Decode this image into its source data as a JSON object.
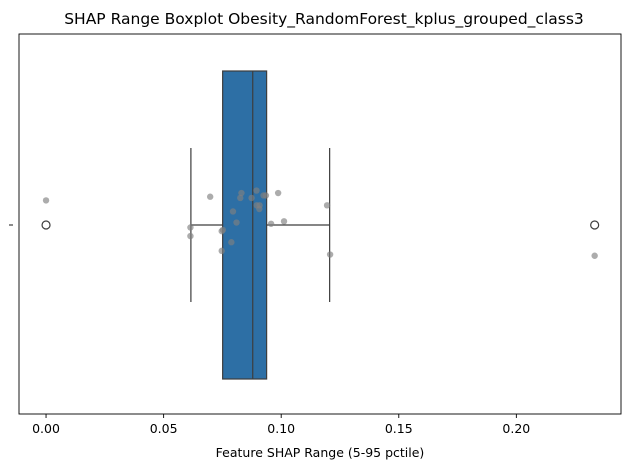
{
  "chart_data": {
    "type": "boxplot",
    "title": "SHAP Range Boxplot Obesity_RandomForest_kplus_grouped_class3",
    "xlabel": "Feature SHAP Range (5-95 pctile)",
    "ylabel": "",
    "xlim": [
      -0.0115,
      0.2445
    ],
    "xticks": [
      0.0,
      0.05,
      0.1,
      0.15,
      0.2
    ],
    "xtick_labels": [
      "0.00",
      "0.05",
      "0.10",
      "0.15",
      "0.20"
    ],
    "grid": false,
    "box": {
      "q1": 0.0751,
      "median": 0.0879,
      "q3": 0.0938,
      "whisker_low": 0.0616,
      "whisker_high": 0.1206,
      "outliers": [
        0.0,
        0.2333
      ],
      "color": "#2d6fa5"
    },
    "points": [
      {
        "x": 0.0,
        "jitter": 0.2
      },
      {
        "x": 0.0614,
        "jitter": -0.02
      },
      {
        "x": 0.0614,
        "jitter": -0.09
      },
      {
        "x": 0.0698,
        "jitter": 0.23
      },
      {
        "x": 0.0747,
        "jitter": -0.05
      },
      {
        "x": 0.0752,
        "jitter": -0.04
      },
      {
        "x": 0.0747,
        "jitter": -0.21
      },
      {
        "x": 0.0795,
        "jitter": 0.11
      },
      {
        "x": 0.081,
        "jitter": 0.02
      },
      {
        "x": 0.0788,
        "jitter": -0.14
      },
      {
        "x": 0.0831,
        "jitter": 0.26
      },
      {
        "x": 0.0826,
        "jitter": 0.22
      },
      {
        "x": 0.0874,
        "jitter": 0.22
      },
      {
        "x": 0.0895,
        "jitter": 0.28
      },
      {
        "x": 0.0896,
        "jitter": 0.16
      },
      {
        "x": 0.0908,
        "jitter": 0.16
      },
      {
        "x": 0.0907,
        "jitter": 0.13
      },
      {
        "x": 0.0925,
        "jitter": 0.24
      },
      {
        "x": 0.0935,
        "jitter": 0.24
      },
      {
        "x": 0.0957,
        "jitter": 0.01
      },
      {
        "x": 0.0987,
        "jitter": 0.26
      },
      {
        "x": 0.1012,
        "jitter": 0.03
      },
      {
        "x": 0.1195,
        "jitter": 0.16
      },
      {
        "x": 0.1208,
        "jitter": -0.24
      },
      {
        "x": 0.2333,
        "jitter": -0.25
      }
    ],
    "points_color": "#808080"
  }
}
